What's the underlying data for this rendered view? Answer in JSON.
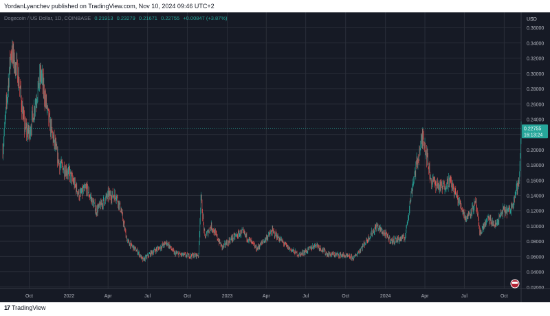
{
  "header": {
    "published_text": "YordanLyanchev published on TradingView.com, Nov 10, 2024 09:46 UTC+2"
  },
  "legend": {
    "symbol": "Dogecoin / US Dollar, 1D, COINBASE",
    "open": "0.21913",
    "high": "0.23279",
    "low": "0.21671",
    "close": "0.22755",
    "change": "+0.00847 (+3.87%)"
  },
  "footer": {
    "brand": "TradingView"
  },
  "colors": {
    "background": "#161a25",
    "up": "#26a69a",
    "down": "#ef5350",
    "grid": "#2a2e39",
    "price_tag": "#26a69a"
  },
  "chart_data": {
    "type": "candlestick",
    "currency": "USD",
    "y_ticks": [
      "0.02000",
      "0.04000",
      "0.06000",
      "0.08000",
      "0.10000",
      "0.12000",
      "0.14000",
      "0.16000",
      "0.18000",
      "0.20000",
      "0.22000",
      "0.24000",
      "0.26000",
      "0.28000",
      "0.30000",
      "0.32000",
      "0.34000",
      "0.36000"
    ],
    "ylim": [
      0.018,
      0.38
    ],
    "x_ticks": [
      "Oct",
      "2022",
      "Apr",
      "Jul",
      "Oct",
      "2023",
      "Apr",
      "Jul",
      "Oct",
      "2024",
      "Apr",
      "Jul",
      "Oct"
    ],
    "x_range": [
      "2021-08-01",
      "2024-11-09"
    ],
    "last_price": "0.22755",
    "countdown": "16:13:24",
    "grid": true,
    "series_approx": [
      [
        "2021-08-01",
        0.2
      ],
      [
        "2021-08-20",
        0.33
      ],
      [
        "2021-09-05",
        0.3
      ],
      [
        "2021-09-20",
        0.23
      ],
      [
        "2021-10-01",
        0.22
      ],
      [
        "2021-10-28",
        0.3
      ],
      [
        "2021-11-15",
        0.24
      ],
      [
        "2021-12-10",
        0.18
      ],
      [
        "2022-01-01",
        0.17
      ],
      [
        "2022-01-25",
        0.14
      ],
      [
        "2022-02-10",
        0.15
      ],
      [
        "2022-03-05",
        0.12
      ],
      [
        "2022-04-01",
        0.14
      ],
      [
        "2022-04-20",
        0.14
      ],
      [
        "2022-05-01",
        0.12
      ],
      [
        "2022-05-15",
        0.08
      ],
      [
        "2022-06-10",
        0.065
      ],
      [
        "2022-06-20",
        0.055
      ],
      [
        "2022-07-10",
        0.065
      ],
      [
        "2022-08-15",
        0.078
      ],
      [
        "2022-09-01",
        0.064
      ],
      [
        "2022-10-01",
        0.061
      ],
      [
        "2022-10-27",
        0.062
      ],
      [
        "2022-11-01",
        0.14
      ],
      [
        "2022-11-10",
        0.085
      ],
      [
        "2022-11-25",
        0.1
      ],
      [
        "2022-12-20",
        0.072
      ],
      [
        "2023-01-15",
        0.085
      ],
      [
        "2023-02-05",
        0.092
      ],
      [
        "2023-03-10",
        0.07
      ],
      [
        "2023-04-15",
        0.093
      ],
      [
        "2023-05-20",
        0.072
      ],
      [
        "2023-06-15",
        0.062
      ],
      [
        "2023-07-05",
        0.068
      ],
      [
        "2023-07-25",
        0.076
      ],
      [
        "2023-08-20",
        0.063
      ],
      [
        "2023-09-20",
        0.062
      ],
      [
        "2023-10-20",
        0.058
      ],
      [
        "2023-11-15",
        0.078
      ],
      [
        "2023-12-12",
        0.1
      ],
      [
        "2024-01-15",
        0.08
      ],
      [
        "2024-02-15",
        0.085
      ],
      [
        "2024-03-05",
        0.16
      ],
      [
        "2024-03-28",
        0.22
      ],
      [
        "2024-04-15",
        0.16
      ],
      [
        "2024-05-10",
        0.15
      ],
      [
        "2024-05-28",
        0.16
      ],
      [
        "2024-06-20",
        0.13
      ],
      [
        "2024-07-05",
        0.11
      ],
      [
        "2024-07-28",
        0.13
      ],
      [
        "2024-08-05",
        0.09
      ],
      [
        "2024-08-25",
        0.11
      ],
      [
        "2024-09-10",
        0.1
      ],
      [
        "2024-09-28",
        0.12
      ],
      [
        "2024-10-15",
        0.12
      ],
      [
        "2024-10-30",
        0.15
      ],
      [
        "2024-11-05",
        0.16
      ],
      [
        "2024-11-09",
        0.22755
      ]
    ]
  }
}
